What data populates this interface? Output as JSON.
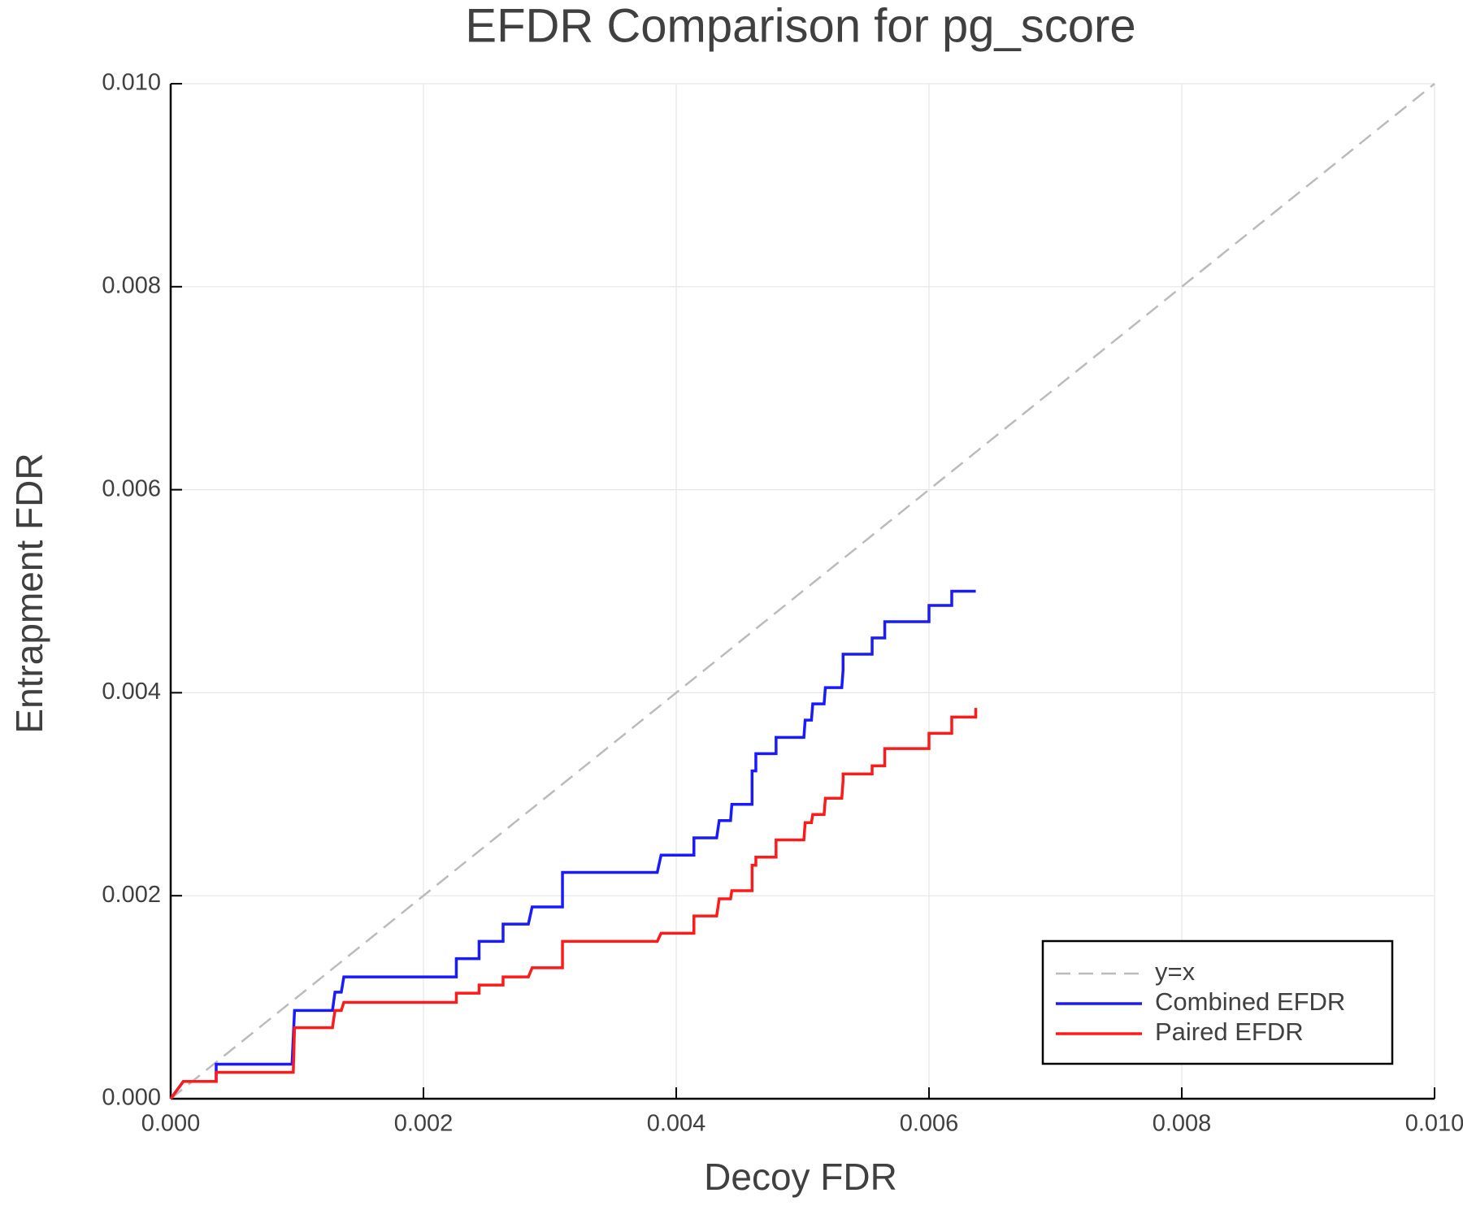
{
  "chart_data": {
    "type": "line",
    "title": "EFDR Comparison for pg_score",
    "x_label": "Decoy FDR",
    "y_label": "Entrapment FDR",
    "xlim": [
      0,
      0.01
    ],
    "ylim": [
      0,
      0.01
    ],
    "xticks": [
      {
        "value": 0,
        "label": "0.000"
      },
      {
        "value": 0.002,
        "label": "0.002"
      },
      {
        "value": 0.004,
        "label": "0.004"
      },
      {
        "value": 0.006,
        "label": "0.006"
      },
      {
        "value": 0.008,
        "label": "0.008"
      },
      {
        "value": 0.01,
        "label": "0.010"
      }
    ],
    "yticks": [
      {
        "value": 0,
        "label": "0.000"
      },
      {
        "value": 0.002,
        "label": "0.002"
      },
      {
        "value": 0.004,
        "label": "0.004"
      },
      {
        "value": 0.006,
        "label": "0.006"
      },
      {
        "value": 0.008,
        "label": "0.008"
      },
      {
        "value": 0.01,
        "label": "0.010"
      }
    ],
    "grid": true,
    "legend": "lower right",
    "series": [
      {
        "name": "y=x",
        "color": "#bbbbbb",
        "dashed": true,
        "x": [
          0,
          0.01
        ],
        "values": [
          0,
          0.01
        ]
      },
      {
        "name": "Combined EFDR",
        "color": "#1a1aff",
        "dashed": false,
        "x": [
          0,
          0.0001,
          0.00036,
          0.00036,
          0.00096,
          0.00098,
          0.00128,
          0.0013,
          0.00135,
          0.00137,
          0.00226,
          0.00226,
          0.00244,
          0.00244,
          0.00263,
          0.00263,
          0.00283,
          0.00286,
          0.0031,
          0.0031,
          0.00385,
          0.00388,
          0.00414,
          0.00414,
          0.00432,
          0.00434,
          0.00443,
          0.00444,
          0.0046,
          0.0046,
          0.00463,
          0.00463,
          0.00479,
          0.00479,
          0.00501,
          0.00502,
          0.00507,
          0.00508,
          0.00517,
          0.00518,
          0.00531,
          0.00532,
          0.00532,
          0.00555,
          0.00555,
          0.00565,
          0.00565,
          0.006,
          0.006,
          0.00618,
          0.00618,
          0.00637
        ],
        "values": [
          0,
          0.00017,
          0.00017,
          0.00034,
          0.00034,
          0.00087,
          0.00087,
          0.00105,
          0.00105,
          0.0012,
          0.0012,
          0.00138,
          0.00138,
          0.00155,
          0.00155,
          0.00172,
          0.00172,
          0.00189,
          0.00189,
          0.00223,
          0.00223,
          0.0024,
          0.0024,
          0.00257,
          0.00257,
          0.00274,
          0.00274,
          0.0029,
          0.0029,
          0.00323,
          0.00323,
          0.0034,
          0.0034,
          0.00356,
          0.00356,
          0.00373,
          0.00373,
          0.00389,
          0.00389,
          0.00405,
          0.00405,
          0.00422,
          0.00438,
          0.00438,
          0.00454,
          0.00454,
          0.0047,
          0.0047,
          0.00486,
          0.00486,
          0.005,
          0.005
        ]
      },
      {
        "name": "Paired EFDR",
        "color": "#ff1a1a",
        "dashed": false,
        "x": [
          0,
          0.0001,
          0.00036,
          0.00036,
          0.00097,
          0.00098,
          0.00128,
          0.0013,
          0.00135,
          0.00137,
          0.00226,
          0.00226,
          0.00244,
          0.00244,
          0.00263,
          0.00263,
          0.00283,
          0.00286,
          0.0031,
          0.0031,
          0.00385,
          0.00388,
          0.00414,
          0.00414,
          0.00432,
          0.00434,
          0.00443,
          0.00444,
          0.0046,
          0.0046,
          0.00463,
          0.00463,
          0.00479,
          0.00479,
          0.00501,
          0.00502,
          0.00507,
          0.00508,
          0.00517,
          0.00518,
          0.00531,
          0.00532,
          0.00532,
          0.00555,
          0.00555,
          0.00565,
          0.00565,
          0.006,
          0.006,
          0.00618,
          0.00618,
          0.00637,
          0.00637
        ],
        "values": [
          0,
          0.00017,
          0.00017,
          0.00026,
          0.00026,
          0.0007,
          0.0007,
          0.00087,
          0.00087,
          0.00095,
          0.00095,
          0.00104,
          0.00104,
          0.00112,
          0.00112,
          0.0012,
          0.0012,
          0.00129,
          0.00129,
          0.00155,
          0.00155,
          0.00163,
          0.00163,
          0.0018,
          0.0018,
          0.00197,
          0.00197,
          0.00205,
          0.00205,
          0.0023,
          0.0023,
          0.00238,
          0.00238,
          0.00255,
          0.00255,
          0.00272,
          0.00272,
          0.0028,
          0.0028,
          0.00296,
          0.00296,
          0.00313,
          0.0032,
          0.0032,
          0.00328,
          0.00328,
          0.00345,
          0.00345,
          0.0036,
          0.0036,
          0.00376,
          0.00376,
          0.00385
        ]
      }
    ]
  }
}
